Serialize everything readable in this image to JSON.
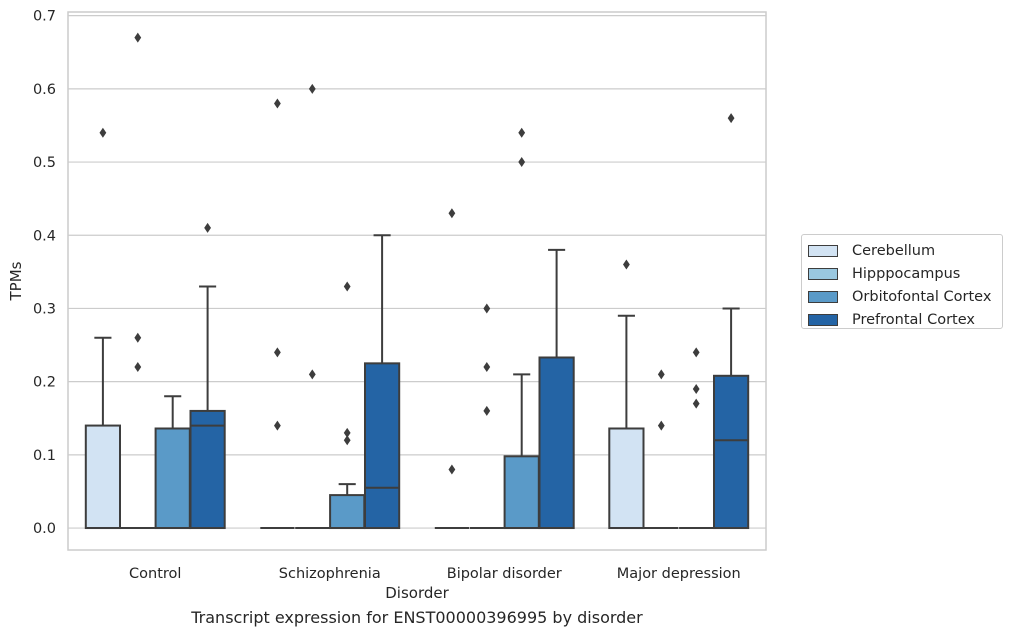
{
  "chart_data": {
    "type": "box",
    "xlabel": "Disorder",
    "ylabel": "TPMs",
    "categories": [
      "Control",
      "Schizophrenia",
      "Bipolar disorder",
      "Major depression"
    ],
    "ylim": [
      -0.03,
      0.705
    ],
    "yticks": [
      "0.0",
      "0.1",
      "0.2",
      "0.3",
      "0.4",
      "0.5",
      "0.6",
      "0.7"
    ],
    "grid": true,
    "legend_position": "right",
    "series": [
      {
        "name": "Cerebellum",
        "color": "#d2e3f3",
        "boxes": [
          {
            "q1": 0.0,
            "median": 0.0,
            "q3": 0.14,
            "whisker_low": 0.0,
            "whisker_high": 0.26,
            "outliers": [
              0.54
            ]
          },
          {
            "q1": 0.0,
            "median": 0.0,
            "q3": 0.0,
            "whisker_low": 0.0,
            "whisker_high": 0.0,
            "outliers": [
              0.24,
              0.14,
              0.58
            ]
          },
          {
            "q1": 0.0,
            "median": 0.0,
            "q3": 0.0,
            "whisker_low": 0.0,
            "whisker_high": 0.0,
            "outliers": [
              0.43,
              0.08
            ]
          },
          {
            "q1": 0.0,
            "median": 0.0,
            "q3": 0.136,
            "whisker_low": 0.0,
            "whisker_high": 0.29,
            "outliers": [
              0.36
            ]
          }
        ]
      },
      {
        "name": "Hipppocampus",
        "color": "#9ac8e0",
        "boxes": [
          {
            "q1": 0.0,
            "median": 0.0,
            "q3": 0.0,
            "whisker_low": 0.0,
            "whisker_high": 0.0,
            "outliers": [
              0.67,
              0.26,
              0.22
            ]
          },
          {
            "q1": 0.0,
            "median": 0.0,
            "q3": 0.0,
            "whisker_low": 0.0,
            "whisker_high": 0.0,
            "outliers": [
              0.6,
              0.21
            ]
          },
          {
            "q1": 0.0,
            "median": 0.0,
            "q3": 0.0,
            "whisker_low": 0.0,
            "whisker_high": 0.0,
            "outliers": [
              0.3,
              0.22,
              0.16
            ]
          },
          {
            "q1": 0.0,
            "median": 0.0,
            "q3": 0.0,
            "whisker_low": 0.0,
            "whisker_high": 0.0,
            "outliers": [
              0.21,
              0.14
            ]
          }
        ]
      },
      {
        "name": "Orbitofontal Cortex",
        "color": "#5a9ac8",
        "boxes": [
          {
            "q1": 0.0,
            "median": 0.0,
            "q3": 0.136,
            "whisker_low": 0.0,
            "whisker_high": 0.18,
            "outliers": []
          },
          {
            "q1": 0.0,
            "median": 0.0,
            "q3": 0.045,
            "whisker_low": 0.0,
            "whisker_high": 0.06,
            "outliers": [
              0.33,
              0.13,
              0.12
            ]
          },
          {
            "q1": 0.0,
            "median": 0.0,
            "q3": 0.098,
            "whisker_low": 0.0,
            "whisker_high": 0.21,
            "outliers": [
              0.54,
              0.5
            ]
          },
          {
            "q1": 0.0,
            "median": 0.0,
            "q3": 0.0,
            "whisker_low": 0.0,
            "whisker_high": 0.0,
            "outliers": [
              0.24,
              0.19,
              0.17
            ]
          }
        ]
      },
      {
        "name": "Prefrontal Cortex",
        "color": "#2464a5",
        "boxes": [
          {
            "q1": 0.0,
            "median": 0.14,
            "q3": 0.16,
            "whisker_low": 0.0,
            "whisker_high": 0.33,
            "outliers": [
              0.41
            ]
          },
          {
            "q1": 0.0,
            "median": 0.055,
            "q3": 0.225,
            "whisker_low": 0.0,
            "whisker_high": 0.4,
            "outliers": []
          },
          {
            "q1": 0.0,
            "median": 0.0,
            "q3": 0.233,
            "whisker_low": 0.0,
            "whisker_high": 0.38,
            "outliers": []
          },
          {
            "q1": 0.0,
            "median": 0.12,
            "q3": 0.208,
            "whisker_low": 0.0,
            "whisker_high": 0.3,
            "outliers": [
              0.56
            ]
          }
        ]
      }
    ]
  },
  "caption": "Transcript expression for ENST00000396995 by disorder"
}
